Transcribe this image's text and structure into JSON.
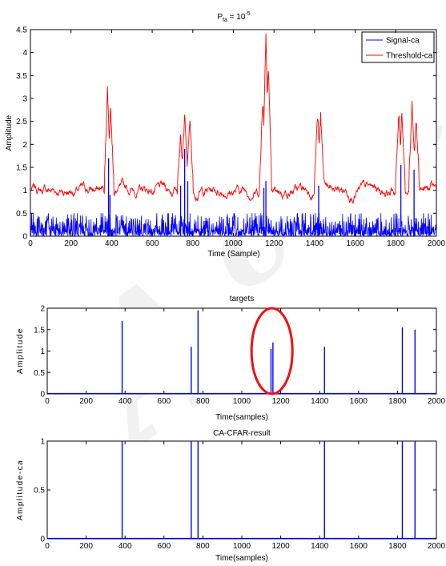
{
  "colors": {
    "signal": "#0000ff",
    "threshold": "#ff0000",
    "annotation": "#ee1111",
    "axes": "#000000",
    "watermark": "#d8d8d8"
  },
  "watermark": {
    "text": "Ac.re"
  },
  "chart_data": [
    {
      "type": "line",
      "title_base": "P",
      "title_sub": "fa",
      "title_rest": " = 10",
      "title_sup": "-5",
      "xlabel": "Time (Sample)",
      "ylabel": "Amplitude",
      "xlim": [
        0,
        2000
      ],
      "ylim": [
        0,
        4.5
      ],
      "xticks": [
        0,
        200,
        400,
        600,
        800,
        1000,
        1200,
        1400,
        1600,
        1800,
        2000
      ],
      "yticks": [
        0,
        0.5,
        1,
        1.5,
        2,
        2.5,
        3,
        3.5,
        4,
        4.5
      ],
      "ytick_labels": [
        "0",
        "0.5",
        "1",
        "1.5",
        "2",
        "2.5",
        "3",
        "3.5",
        "4",
        "4.5"
      ],
      "legend": {
        "position": "top-right",
        "entries": [
          "Signal-ca",
          "Threshold-ca"
        ]
      },
      "series": [
        {
          "name": "Signal-ca",
          "kind": "noise",
          "baseline_max": 0.45,
          "peaks": [
            [
              385,
              1.7
            ],
            [
              392,
              0.9
            ],
            [
              740,
              1.1
            ],
            [
              760,
              1.9
            ],
            [
              775,
              1.2
            ],
            [
              1150,
              1.05
            ],
            [
              1160,
              1.2
            ],
            [
              1420,
              1.1
            ],
            [
              1825,
              1.55
            ],
            [
              1890,
              1.45
            ]
          ]
        },
        {
          "name": "Threshold-ca",
          "kind": "threshold",
          "baseline": 1.0,
          "bumps": [
            [
              380,
              3.2
            ],
            [
              395,
              2.8
            ],
            [
              740,
              2.2
            ],
            [
              760,
              2.6
            ],
            [
              785,
              2.55
            ],
            [
              1145,
              3.0
            ],
            [
              1160,
              4.4
            ],
            [
              1172,
              3.7
            ],
            [
              1415,
              2.7
            ],
            [
              1430,
              2.65
            ],
            [
              1815,
              2.7
            ],
            [
              1830,
              2.65
            ],
            [
              1880,
              2.9
            ],
            [
              1900,
              2.55
            ]
          ]
        }
      ]
    },
    {
      "type": "stem",
      "title": "targets",
      "xlabel": "Time(samples)",
      "ylabel": "Amplitude",
      "xlim": [
        0,
        2000
      ],
      "ylim": [
        0,
        2
      ],
      "xticks": [
        0,
        200,
        400,
        600,
        800,
        1000,
        1200,
        1400,
        1600,
        1800,
        2000
      ],
      "yticks": [
        0,
        0.5,
        1,
        1.5,
        2
      ],
      "ytick_labels": [
        "0",
        "0.5",
        "1",
        "1.5",
        "2"
      ],
      "x": [
        385,
        740,
        775,
        1150,
        1160,
        1425,
        1825,
        1890
      ],
      "y": [
        1.7,
        1.1,
        1.95,
        1.05,
        1.2,
        1.1,
        1.55,
        1.5
      ],
      "annotation": {
        "shape": "ellipse",
        "center": [
          1155,
          1.0
        ],
        "radii": [
          105,
          1.0
        ]
      }
    },
    {
      "type": "stem",
      "title": "CA-CFAR-result",
      "xlabel": "Time(samples)",
      "ylabel": "Amplitude-ca",
      "xlim": [
        0,
        2000
      ],
      "ylim": [
        0,
        1
      ],
      "xticks": [
        0,
        200,
        400,
        600,
        800,
        1000,
        1200,
        1400,
        1600,
        1800,
        2000
      ],
      "yticks": [
        0,
        0.5,
        1
      ],
      "ytick_labels": [
        "0",
        "0.5",
        "1"
      ],
      "x": [
        385,
        740,
        775,
        1425,
        1825,
        1890
      ],
      "y": [
        1,
        1,
        1,
        1,
        1,
        1
      ]
    }
  ]
}
